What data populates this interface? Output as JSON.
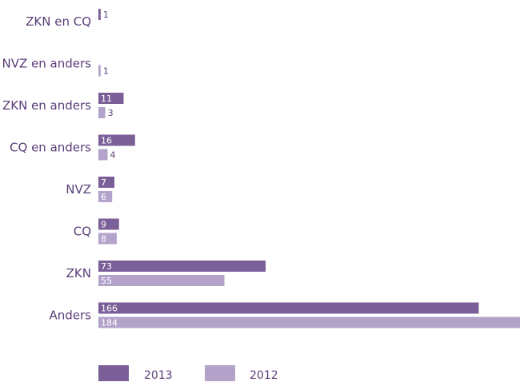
{
  "chart_data": {
    "type": "bar",
    "orientation": "horizontal",
    "categories": [
      "ZKN en CQ",
      "NVZ en anders",
      "ZKN en anders",
      "CQ en anders",
      "NVZ",
      "CQ",
      "ZKN",
      "Anders"
    ],
    "series": [
      {
        "name": "2013",
        "color": "#7b5f98",
        "values": [
          1,
          null,
          11,
          16,
          7,
          9,
          73,
          166
        ]
      },
      {
        "name": "2012",
        "color": "#b3a3cb",
        "values": [
          null,
          1,
          3,
          4,
          6,
          8,
          55,
          184
        ]
      }
    ],
    "data_labels": [
      [
        "1",
        null,
        "11",
        "16",
        "7",
        "9",
        "73",
        "166"
      ],
      [
        null,
        "1",
        "3",
        "4",
        "6",
        "8",
        "55",
        "184"
      ]
    ],
    "xlim": [
      0,
      184
    ],
    "grid": false,
    "legend_position": "bottom-left",
    "title": "",
    "xlabel": "",
    "ylabel": ""
  }
}
